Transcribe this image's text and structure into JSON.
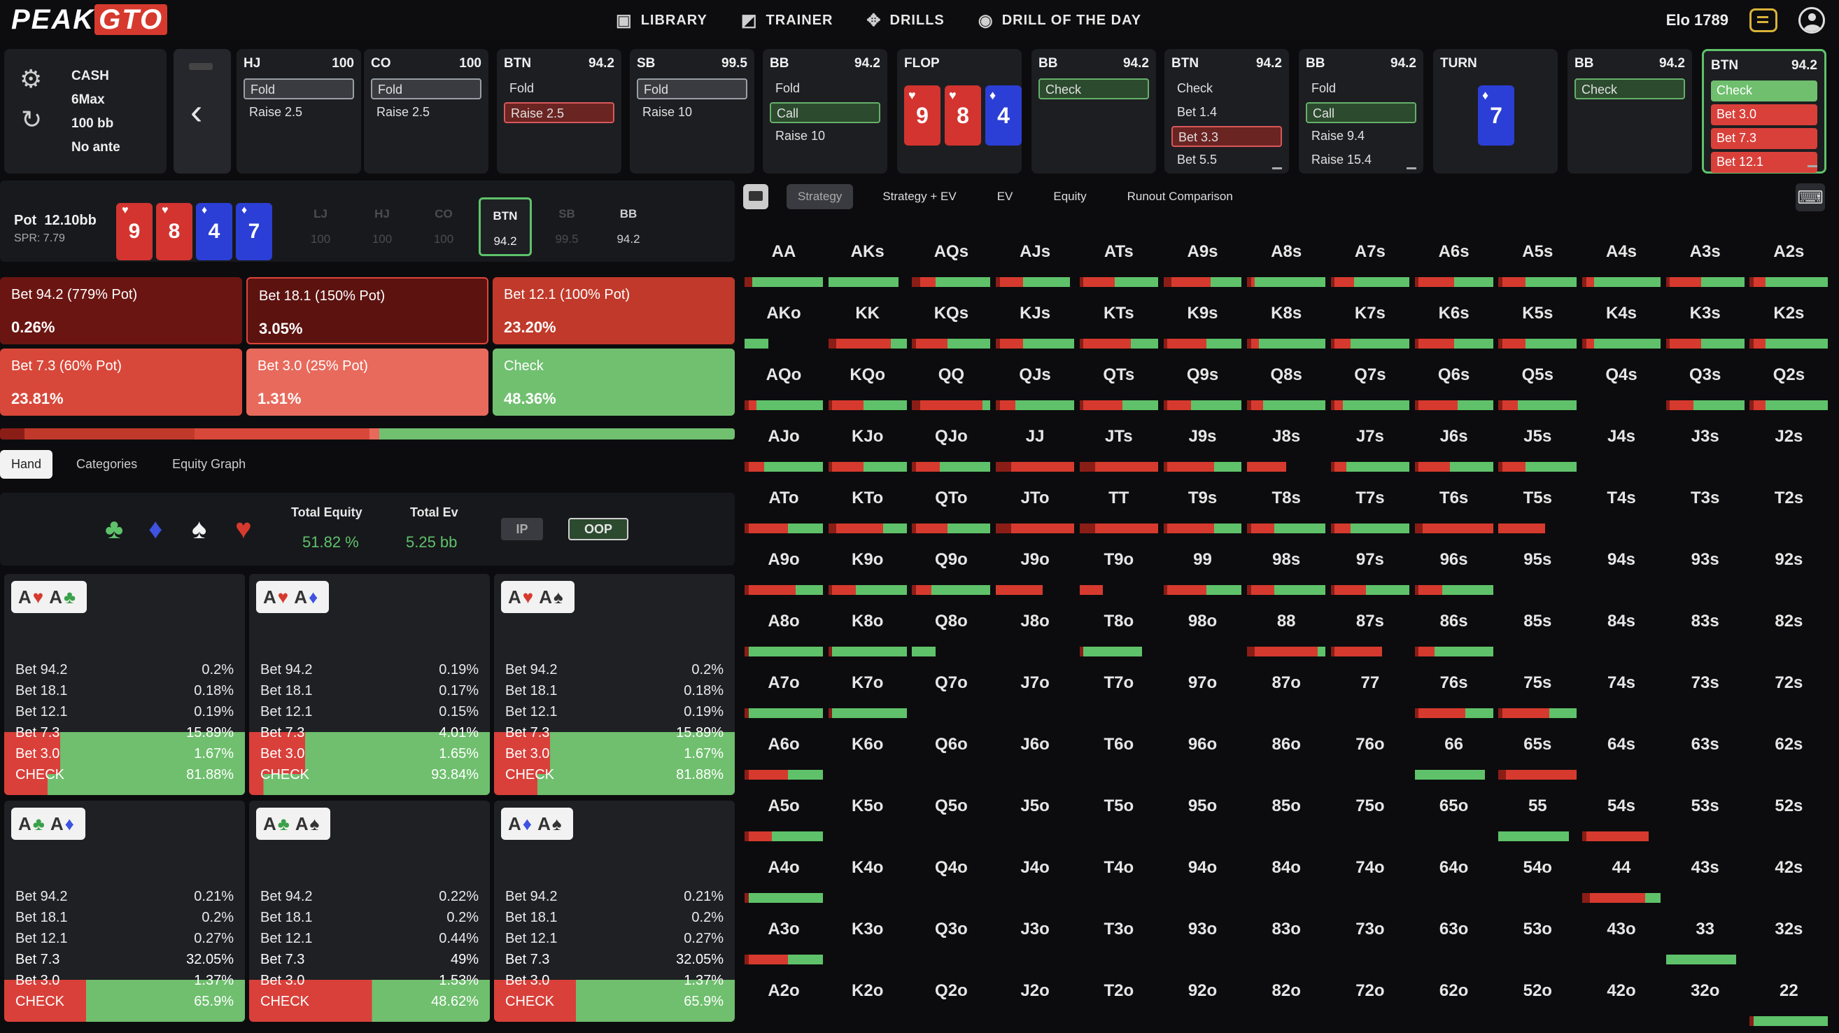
{
  "logo": {
    "peak": "PEAK",
    "gto": "GTO"
  },
  "nav": [
    {
      "icon": "library-icon",
      "glyph": "▣",
      "label": "LIBRARY"
    },
    {
      "icon": "trainer-icon",
      "glyph": "◩",
      "label": "TRAINER"
    },
    {
      "icon": "drills-icon",
      "glyph": "✥",
      "label": "DRILLS"
    },
    {
      "icon": "drill-of-day-icon",
      "glyph": "◉",
      "label": "DRILL OF THE DAY"
    }
  ],
  "elo": "Elo 1789",
  "cash": {
    "lines": [
      "CASH",
      "6Max",
      "100 bb",
      "No ante"
    ]
  },
  "actions": [
    {
      "pos": "HJ",
      "stack": "100",
      "opts": [
        {
          "t": "Fold",
          "s": "sel-grey"
        },
        {
          "t": "Raise 2.5",
          "s": ""
        }
      ]
    },
    {
      "pos": "CO",
      "stack": "100",
      "opts": [
        {
          "t": "Fold",
          "s": "sel-grey"
        },
        {
          "t": "Raise 2.5",
          "s": ""
        }
      ]
    },
    {
      "pos": "BTN",
      "stack": "94.2",
      "opts": [
        {
          "t": "Fold",
          "s": ""
        },
        {
          "t": "Raise 2.5",
          "s": "sel-red"
        }
      ]
    },
    {
      "pos": "SB",
      "stack": "99.5",
      "opts": [
        {
          "t": "Fold",
          "s": "sel-grey"
        },
        {
          "t": "Raise 10",
          "s": ""
        }
      ]
    },
    {
      "pos": "BB",
      "stack": "94.2",
      "opts": [
        {
          "t": "Fold",
          "s": ""
        },
        {
          "t": "Call",
          "s": "sel-green"
        },
        {
          "t": "Raise 10",
          "s": ""
        }
      ]
    },
    {
      "pos": "FLOP",
      "stack": "",
      "board": true
    },
    {
      "pos": "BB",
      "stack": "94.2",
      "opts": [
        {
          "t": "Check",
          "s": "sel-green"
        }
      ]
    },
    {
      "pos": "BTN",
      "stack": "94.2",
      "opts": [
        {
          "t": "Check",
          "s": ""
        },
        {
          "t": "Bet 1.4",
          "s": ""
        },
        {
          "t": "Bet 3.3",
          "s": "sel-red"
        },
        {
          "t": "Bet 5.5",
          "s": ""
        }
      ]
    },
    {
      "pos": "BB",
      "stack": "94.2",
      "opts": [
        {
          "t": "Fold",
          "s": ""
        },
        {
          "t": "Call",
          "s": "sel-green"
        },
        {
          "t": "Raise 9.4",
          "s": ""
        },
        {
          "t": "Raise 15.4",
          "s": ""
        }
      ]
    },
    {
      "pos": "TURN",
      "stack": "",
      "turn": true
    },
    {
      "pos": "BB",
      "stack": "94.2",
      "opts": [
        {
          "t": "Check",
          "s": "sel-green"
        }
      ]
    },
    {
      "pos": "BTN",
      "stack": "94.2",
      "active": true,
      "opts": [
        {
          "t": "Check",
          "s": "hl-green"
        },
        {
          "t": "Bet 3.0",
          "s": "hl-red"
        },
        {
          "t": "Bet 7.3",
          "s": "hl-red"
        },
        {
          "t": "Bet 12.1",
          "s": "hl-red"
        }
      ]
    }
  ],
  "flop": [
    {
      "r": "9",
      "s": "♥",
      "c": "red"
    },
    {
      "r": "8",
      "s": "♥",
      "c": "red"
    },
    {
      "r": "4",
      "s": "♦",
      "c": "blue"
    }
  ],
  "turn": {
    "r": "7",
    "s": "♦",
    "c": "blue"
  },
  "pot": {
    "label": "Pot",
    "value": "12.10bb",
    "spr": "SPR: 7.79"
  },
  "board_all": [
    {
      "r": "9",
      "s": "♥",
      "c": "red"
    },
    {
      "r": "8",
      "s": "♥",
      "c": "red"
    },
    {
      "r": "4",
      "s": "♦",
      "c": "blue"
    },
    {
      "r": "7",
      "s": "♦",
      "c": "blue"
    }
  ],
  "seats": [
    {
      "n": "LJ",
      "s": "100"
    },
    {
      "n": "HJ",
      "s": "100"
    },
    {
      "n": "CO",
      "s": "100"
    },
    {
      "n": "BTN",
      "s": "94.2",
      "hero": true
    },
    {
      "n": "SB",
      "s": "99.5"
    },
    {
      "n": "BB",
      "s": "94.2",
      "bb": true
    }
  ],
  "strategy": [
    {
      "label": "Bet 94.2 (779% Pot)",
      "pct": "0.26%",
      "bg": "#6b1512"
    },
    {
      "label": "Bet 18.1 (150% Pot)",
      "pct": "3.05%",
      "bg": "#5c1310",
      "outlined": true
    },
    {
      "label": "Bet 12.1 (100% Pot)",
      "pct": "23.20%",
      "bg": "#c1392a"
    },
    {
      "label": "Bet 7.3 (60% Pot)",
      "pct": "23.81%",
      "bg": "#d8483a"
    },
    {
      "label": "Bet 3.0 (25% Pot)",
      "pct": "1.31%",
      "bg": "#e86a5c"
    },
    {
      "label": "Check",
      "pct": "48.36%",
      "bg": "#70c070"
    }
  ],
  "dist": [
    {
      "c": "#8b1d17",
      "v": 3.3
    },
    {
      "c": "#c1392a",
      "v": 23.2
    },
    {
      "c": "#d8483a",
      "v": 23.8
    },
    {
      "c": "#e86a5c",
      "v": 1.3
    },
    {
      "c": "#70c070",
      "v": 48.4
    }
  ],
  "tabs": [
    "Hand",
    "Categories",
    "Equity Graph"
  ],
  "equity": {
    "te_label": "Total Equity",
    "te": "51.82 %",
    "ev_label": "Total Ev",
    "ev": "5.25 bb",
    "ip": "IP",
    "oop": "OOP"
  },
  "suits": [
    {
      "g": "♣",
      "c": "#5fc26a"
    },
    {
      "g": "♦",
      "c": "#3f52e0"
    },
    {
      "g": "♠",
      "c": "#f2f2f2"
    },
    {
      "g": "♥",
      "c": "#d63a2e"
    }
  ],
  "combos": [
    {
      "cards": [
        {
          "r": "A",
          "s": "♥",
          "c": "#d63a2e"
        },
        {
          "r": "A",
          "s": "♣",
          "c": "#3aa04a"
        }
      ],
      "rows": [
        [
          "Bet 94.2",
          "0.2%"
        ],
        [
          "Bet 18.1",
          "0.18%"
        ],
        [
          "Bet 12.1",
          "0.19%"
        ],
        [
          "Bet 7.3",
          "15.89%"
        ],
        [
          "Bet 3.0",
          "1.67%"
        ],
        [
          "CHECK",
          "81.88%"
        ]
      ],
      "red": 0.18
    },
    {
      "cards": [
        {
          "r": "A",
          "s": "♥",
          "c": "#d63a2e"
        },
        {
          "r": "A",
          "s": "♦",
          "c": "#3f52e0"
        }
      ],
      "rows": [
        [
          "Bet 94.2",
          "0.19%"
        ],
        [
          "Bet 18.1",
          "0.17%"
        ],
        [
          "Bet 12.1",
          "0.15%"
        ],
        [
          "Bet 7.3",
          "4.01%"
        ],
        [
          "Bet 3.0",
          "1.65%"
        ],
        [
          "CHECK",
          "93.84%"
        ]
      ],
      "red": 0.06
    },
    {
      "cards": [
        {
          "r": "A",
          "s": "♥",
          "c": "#d63a2e"
        },
        {
          "r": "A",
          "s": "♠",
          "c": "#333"
        }
      ],
      "rows": [
        [
          "Bet 94.2",
          "0.2%"
        ],
        [
          "Bet 18.1",
          "0.18%"
        ],
        [
          "Bet 12.1",
          "0.19%"
        ],
        [
          "Bet 7.3",
          "15.89%"
        ],
        [
          "Bet 3.0",
          "1.67%"
        ],
        [
          "CHECK",
          "81.88%"
        ]
      ],
      "red": 0.18
    },
    {
      "cards": [
        {
          "r": "A",
          "s": "♣",
          "c": "#3aa04a"
        },
        {
          "r": "A",
          "s": "♦",
          "c": "#3f52e0"
        }
      ],
      "rows": [
        [
          "Bet 94.2",
          "0.21%"
        ],
        [
          "Bet 18.1",
          "0.2%"
        ],
        [
          "Bet 12.1",
          "0.27%"
        ],
        [
          "Bet 7.3",
          "32.05%"
        ],
        [
          "Bet 3.0",
          "1.37%"
        ],
        [
          "CHECK",
          "65.9%"
        ]
      ],
      "red": 0.34
    },
    {
      "cards": [
        {
          "r": "A",
          "s": "♣",
          "c": "#3aa04a"
        },
        {
          "r": "A",
          "s": "♠",
          "c": "#333"
        }
      ],
      "rows": [
        [
          "Bet 94.2",
          "0.22%"
        ],
        [
          "Bet 18.1",
          "0.2%"
        ],
        [
          "Bet 12.1",
          "0.44%"
        ],
        [
          "Bet 7.3",
          "49%"
        ],
        [
          "Bet 3.0",
          "1.53%"
        ],
        [
          "CHECK",
          "48.62%"
        ]
      ],
      "red": 0.51
    },
    {
      "cards": [
        {
          "r": "A",
          "s": "♦",
          "c": "#3f52e0"
        },
        {
          "r": "A",
          "s": "♠",
          "c": "#333"
        }
      ],
      "rows": [
        [
          "Bet 94.2",
          "0.21%"
        ],
        [
          "Bet 18.1",
          "0.2%"
        ],
        [
          "Bet 12.1",
          "0.27%"
        ],
        [
          "Bet 7.3",
          "32.05%"
        ],
        [
          "Bet 3.0",
          "1.37%"
        ],
        [
          "CHECK",
          "65.9%"
        ]
      ],
      "red": 0.34
    }
  ],
  "gridtabs": [
    "Strategy",
    "Strategy + EV",
    "EV",
    "Equity",
    "Runout Comparison"
  ],
  "ranks": [
    "A",
    "K",
    "Q",
    "J",
    "T",
    "9",
    "8",
    "7",
    "6",
    "5",
    "4",
    "3",
    "2"
  ],
  "grid_bars": {
    "AA": [
      0.1,
      0.0,
      0.9
    ],
    "AKs": [
      0.0,
      0.0,
      0.9
    ],
    "AQs": [
      0.1,
      0.2,
      0.7
    ],
    "AJs": [
      0.05,
      0.3,
      0.6
    ],
    "ATs": [
      0.05,
      0.4,
      0.55
    ],
    "A9s": [
      0.1,
      0.5,
      0.4
    ],
    "A8s": [
      0.05,
      0.05,
      0.9
    ],
    "A7s": [
      0.05,
      0.25,
      0.7
    ],
    "A6s": [
      0.05,
      0.45,
      0.5
    ],
    "A5s": [
      0.05,
      0.3,
      0.65
    ],
    "A4s": [
      0.05,
      0.1,
      0.85
    ],
    "A3s": [
      0.05,
      0.4,
      0.55
    ],
    "A2s": [
      0.05,
      0.15,
      0.8
    ],
    "AKo": [
      0.0,
      0.0,
      0.3
    ],
    "KK": [
      0.1,
      0.7,
      0.2
    ],
    "KQs": [
      0.05,
      0.4,
      0.55
    ],
    "KJs": [
      0.05,
      0.3,
      0.65
    ],
    "KTs": [
      0.05,
      0.6,
      0.35
    ],
    "K9s": [
      0.05,
      0.5,
      0.45
    ],
    "K8s": [
      0.05,
      0.1,
      0.85
    ],
    "K7s": [
      0.05,
      0.2,
      0.75
    ],
    "K6s": [
      0.05,
      0.45,
      0.5
    ],
    "K5s": [
      0.05,
      0.3,
      0.65
    ],
    "K4s": [
      0.05,
      0.1,
      0.85
    ],
    "K3s": [
      0.05,
      0.4,
      0.55
    ],
    "K2s": [
      0.05,
      0.15,
      0.8
    ],
    "AQo": [
      0.05,
      0.1,
      0.85
    ],
    "KQo": [
      0.05,
      0.4,
      0.55
    ],
    "QQ": [
      0.1,
      0.8,
      0.1
    ],
    "QJs": [
      0.05,
      0.2,
      0.75
    ],
    "QTs": [
      0.05,
      0.5,
      0.45
    ],
    "Q9s": [
      0.05,
      0.3,
      0.65
    ],
    "Q8s": [
      0.05,
      0.15,
      0.8
    ],
    "Q7s": [
      0.05,
      0.1,
      0.85
    ],
    "Q6s": [
      0.05,
      0.5,
      0.45
    ],
    "Q5s": [
      0.05,
      0.2,
      0.75
    ],
    "Q4s": [
      0.0,
      0.0,
      0.0
    ],
    "Q3s": [
      0.05,
      0.3,
      0.65
    ],
    "Q2s": [
      0.05,
      0.15,
      0.8
    ],
    "AJo": [
      0.05,
      0.2,
      0.75
    ],
    "KJo": [
      0.05,
      0.4,
      0.55
    ],
    "QJo": [
      0.05,
      0.3,
      0.65
    ],
    "JJ": [
      0.2,
      0.8,
      0.0
    ],
    "JTs": [
      0.2,
      0.8,
      0.0
    ],
    "J9s": [
      0.05,
      0.6,
      0.35
    ],
    "J8s": [
      0.0,
      0.5,
      0.0
    ],
    "J7s": [
      0.05,
      0.15,
      0.8
    ],
    "J6s": [
      0.05,
      0.4,
      0.55
    ],
    "J5s": [
      0.05,
      0.3,
      0.65
    ],
    "J4s": [
      0.0,
      0.0,
      0.0
    ],
    "J3s": [
      0.0,
      0.0,
      0.0
    ],
    "J2s": [
      0.0,
      0.0,
      0.0
    ],
    "ATo": [
      0.05,
      0.5,
      0.45
    ],
    "KTo": [
      0.1,
      0.6,
      0.3
    ],
    "QTo": [
      0.05,
      0.4,
      0.55
    ],
    "JTo": [
      0.2,
      0.8,
      0.0
    ],
    "TT": [
      0.2,
      0.8,
      0.0
    ],
    "T9s": [
      0.05,
      0.6,
      0.35
    ],
    "T8s": [
      0.05,
      0.3,
      0.65
    ],
    "T7s": [
      0.05,
      0.2,
      0.75
    ],
    "T6s": [
      0.1,
      0.9,
      0.0
    ],
    "T5s": [
      0.0,
      0.6,
      0.0
    ],
    "T4s": [
      0.0,
      0.0,
      0.0
    ],
    "T3s": [
      0.0,
      0.0,
      0.0
    ],
    "T2s": [
      0.0,
      0.0,
      0.0
    ],
    "A9o": [
      0.05,
      0.6,
      0.35
    ],
    "K9o": [
      0.05,
      0.3,
      0.65
    ],
    "Q9o": [
      0.05,
      0.2,
      0.75
    ],
    "J9o": [
      0.0,
      0.6,
      0.0
    ],
    "T9o": [
      0.0,
      0.3,
      0.0
    ],
    "99": [
      0.05,
      0.5,
      0.45
    ],
    "98s": [
      0.05,
      0.3,
      0.65
    ],
    "97s": [
      0.05,
      0.4,
      0.55
    ],
    "96s": [
      0.05,
      0.3,
      0.65
    ],
    "95s": [
      0.0,
      0.0,
      0.0
    ],
    "94s": [
      0.0,
      0.0,
      0.0
    ],
    "93s": [
      0.0,
      0.0,
      0.0
    ],
    "92s": [
      0.0,
      0.0,
      0.0
    ],
    "A8o": [
      0.05,
      0.0,
      0.95
    ],
    "K8o": [
      0.05,
      0.0,
      0.95
    ],
    "Q8o": [
      0.0,
      0.0,
      0.3
    ],
    "J8o": [
      0.0,
      0.0,
      0.0
    ],
    "T8o": [
      0.05,
      0.0,
      0.75
    ],
    "98o": [
      0.0,
      0.0,
      0.0
    ],
    "88": [
      0.1,
      0.8,
      0.1
    ],
    "87s": [
      0.05,
      0.6,
      0.0
    ],
    "86s": [
      0.05,
      0.2,
      0.75
    ],
    "85s": [
      0.0,
      0.0,
      0.0
    ],
    "84s": [
      0.0,
      0.0,
      0.0
    ],
    "83s": [
      0.0,
      0.0,
      0.0
    ],
    "82s": [
      0.0,
      0.0,
      0.0
    ],
    "A7o": [
      0.05,
      0.0,
      0.95
    ],
    "K7o": [
      0.05,
      0.0,
      0.95
    ],
    "Q7o": [
      0.0,
      0.0,
      0.0
    ],
    "J7o": [
      0.0,
      0.0,
      0.0
    ],
    "T7o": [
      0.0,
      0.0,
      0.0
    ],
    "97o": [
      0.0,
      0.0,
      0.0
    ],
    "87o": [
      0.0,
      0.0,
      0.0
    ],
    "77": [
      0.0,
      0.0,
      0.0
    ],
    "76s": [
      0.05,
      0.6,
      0.35
    ],
    "75s": [
      0.05,
      0.6,
      0.35
    ],
    "74s": [
      0.0,
      0.0,
      0.0
    ],
    "73s": [
      0.0,
      0.0,
      0.0
    ],
    "72s": [
      0.0,
      0.0,
      0.0
    ],
    "A6o": [
      0.05,
      0.5,
      0.45
    ],
    "K6o": [
      0.0,
      0.0,
      0.0
    ],
    "Q6o": [
      0.0,
      0.0,
      0.0
    ],
    "J6o": [
      0.0,
      0.0,
      0.0
    ],
    "T6o": [
      0.0,
      0.0,
      0.0
    ],
    "96o": [
      0.0,
      0.0,
      0.0
    ],
    "86o": [
      0.0,
      0.0,
      0.0
    ],
    "76o": [
      0.0,
      0.0,
      0.0
    ],
    "66": [
      0.0,
      0.0,
      0.9
    ],
    "65s": [
      0.1,
      0.9,
      0.0
    ],
    "64s": [
      0.0,
      0.0,
      0.0
    ],
    "63s": [
      0.0,
      0.0,
      0.0
    ],
    "62s": [
      0.0,
      0.0,
      0.0
    ],
    "A5o": [
      0.05,
      0.3,
      0.65
    ],
    "K5o": [
      0.0,
      0.0,
      0.0
    ],
    "Q5o": [
      0.0,
      0.0,
      0.0
    ],
    "J5o": [
      0.0,
      0.0,
      0.0
    ],
    "T5o": [
      0.0,
      0.0,
      0.0
    ],
    "95o": [
      0.0,
      0.0,
      0.0
    ],
    "85o": [
      0.0,
      0.0,
      0.0
    ],
    "75o": [
      0.0,
      0.0,
      0.0
    ],
    "65o": [
      0.0,
      0.0,
      0.0
    ],
    "55": [
      0.0,
      0.0,
      0.9
    ],
    "54s": [
      0.05,
      0.8,
      0.0
    ],
    "53s": [
      0.0,
      0.0,
      0.0
    ],
    "52s": [
      0.0,
      0.0,
      0.0
    ],
    "A4o": [
      0.05,
      0.0,
      0.95
    ],
    "K4o": [
      0.0,
      0.0,
      0.0
    ],
    "Q4o": [
      0.0,
      0.0,
      0.0
    ],
    "J4o": [
      0.0,
      0.0,
      0.0
    ],
    "T4o": [
      0.0,
      0.0,
      0.0
    ],
    "94o": [
      0.0,
      0.0,
      0.0
    ],
    "84o": [
      0.0,
      0.0,
      0.0
    ],
    "74o": [
      0.0,
      0.0,
      0.0
    ],
    "64o": [
      0.0,
      0.0,
      0.0
    ],
    "54o": [
      0.0,
      0.0,
      0.0
    ],
    "44": [
      0.1,
      0.7,
      0.2
    ],
    "43s": [
      0.0,
      0.0,
      0.0
    ],
    "42s": [
      0.0,
      0.0,
      0.0
    ],
    "A3o": [
      0.05,
      0.5,
      0.45
    ],
    "K3o": [
      0.0,
      0.0,
      0.0
    ],
    "Q3o": [
      0.0,
      0.0,
      0.0
    ],
    "J3o": [
      0.0,
      0.0,
      0.0
    ],
    "T3o": [
      0.0,
      0.0,
      0.0
    ],
    "93o": [
      0.0,
      0.0,
      0.0
    ],
    "83o": [
      0.0,
      0.0,
      0.0
    ],
    "73o": [
      0.0,
      0.0,
      0.0
    ],
    "63o": [
      0.0,
      0.0,
      0.0
    ],
    "53o": [
      0.0,
      0.0,
      0.0
    ],
    "43o": [
      0.0,
      0.0,
      0.0
    ],
    "33": [
      0.0,
      0.0,
      0.9
    ],
    "32s": [
      0.0,
      0.0,
      0.0
    ],
    "A2o": [
      0.0,
      0.0,
      0.0
    ],
    "K2o": [
      0.0,
      0.0,
      0.0
    ],
    "Q2o": [
      0.0,
      0.0,
      0.0
    ],
    "J2o": [
      0.0,
      0.0,
      0.0
    ],
    "T2o": [
      0.0,
      0.0,
      0.0
    ],
    "92o": [
      0.0,
      0.0,
      0.0
    ],
    "82o": [
      0.0,
      0.0,
      0.0
    ],
    "72o": [
      0.0,
      0.0,
      0.0
    ],
    "62o": [
      0.0,
      0.0,
      0.0
    ],
    "52o": [
      0.0,
      0.0,
      0.0
    ],
    "42o": [
      0.0,
      0.0,
      0.0
    ],
    "32o": [
      0.0,
      0.0,
      0.0
    ],
    "22": [
      0.05,
      0.0,
      0.95
    ]
  },
  "colors": {
    "green": "#5fc26a",
    "red": "#d63a2e",
    "darkred": "#8b1d17",
    "blue": "#2b3fd6"
  }
}
